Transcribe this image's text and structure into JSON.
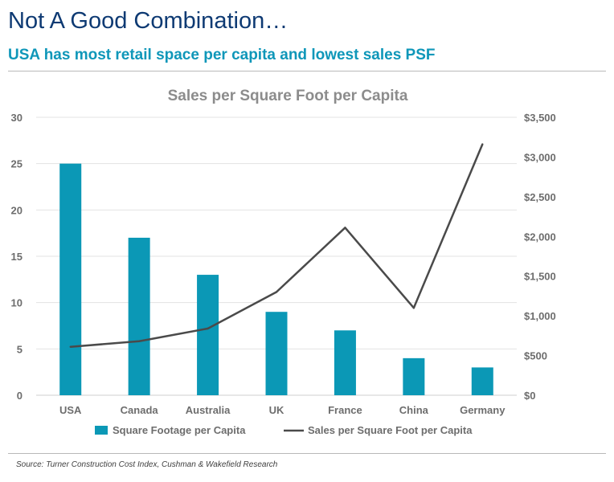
{
  "header": {
    "title": "Not A Good Combination…",
    "subtitle": "USA has most retail space per capita and lowest sales PSF"
  },
  "source": "Source: Turner Construction Cost Index, Cushman & Wakefield Research",
  "colors": {
    "bar": "#0b98b6",
    "line": "#4a4a4a",
    "grid": "#e3e3e3"
  },
  "chart_data": {
    "type": "bar",
    "title": "Sales per Square Foot per Capita",
    "categories": [
      "USA",
      "Canada",
      "Australia",
      "UK",
      "France",
      "China",
      "Germany"
    ],
    "series": [
      {
        "name": "Square Footage per Capita",
        "type": "bar",
        "axis": "left",
        "values": [
          25,
          17,
          13,
          9,
          7,
          4,
          3
        ]
      },
      {
        "name": "Sales per Square Foot per Capita",
        "type": "line",
        "axis": "right",
        "values": [
          610,
          680,
          840,
          1300,
          2110,
          1100,
          3160
        ]
      }
    ],
    "y_left": {
      "range": [
        0,
        30
      ],
      "ticks": [
        "0",
        "5",
        "10",
        "15",
        "20",
        "25",
        "30"
      ]
    },
    "y_right": {
      "range": [
        0,
        3500
      ],
      "ticks": [
        "$0",
        "$500",
        "$1,000",
        "$1,500",
        "$2,000",
        "$2,500",
        "$3,000",
        "$3,500"
      ]
    },
    "grid": true,
    "legend_position": "bottom"
  }
}
